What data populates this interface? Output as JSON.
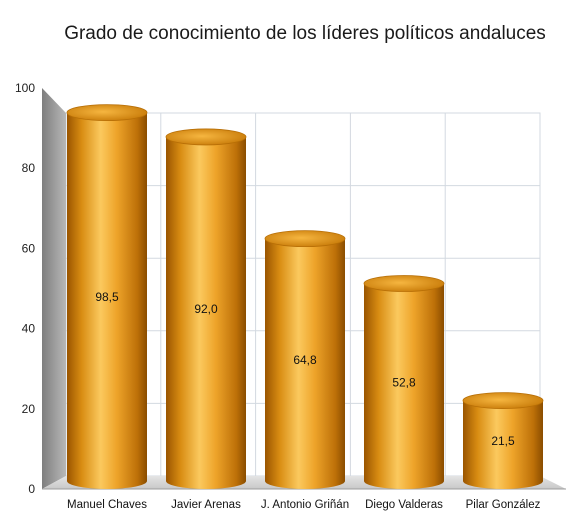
{
  "chart_data": {
    "type": "bar",
    "title": "Grado de conocimiento de los líderes políticos andaluces",
    "xlabel": "",
    "ylabel": "",
    "ylim": [
      0,
      100
    ],
    "yticks": [
      "0",
      "20",
      "40",
      "60",
      "80",
      "100"
    ],
    "categories": [
      "Manuel Chaves",
      "Javier Arenas",
      "J. Antonio Griñán",
      "Diego Valderas",
      "Pilar González"
    ],
    "values": [
      98.5,
      92.0,
      64.8,
      52.8,
      21.5
    ],
    "value_labels": [
      "98,5",
      "92,0",
      "64,8",
      "52,8",
      "21,5"
    ],
    "grid": true,
    "legend": "none",
    "colors": {
      "bar_light": "#f9c55a",
      "bar_mid": "#dc8e12",
      "bar_dark": "#8a4d00",
      "grid": "#d3d9e0",
      "wall_side": "#9a9a9a"
    }
  }
}
